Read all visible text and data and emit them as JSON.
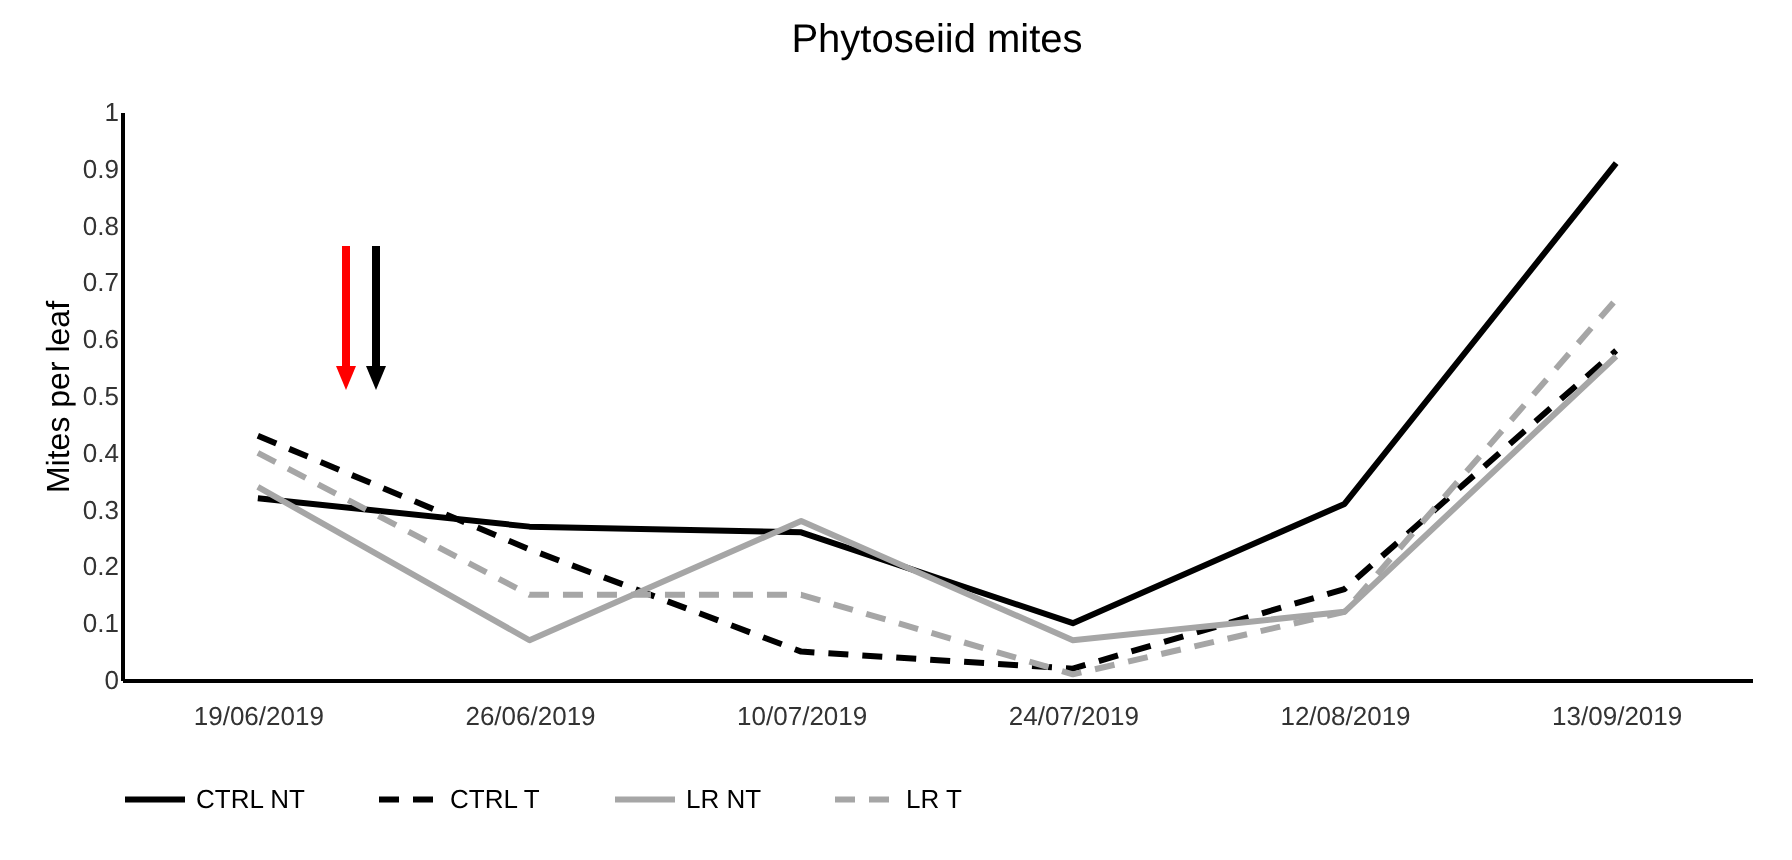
{
  "chart_data": {
    "type": "line",
    "title": "Phytoseiid mites",
    "ylabel": "Mites per leaf",
    "categories": [
      "19/06/2019",
      "26/06/2019",
      "10/07/2019",
      "24/07/2019",
      "12/08/2019",
      "13/09/2019"
    ],
    "series": [
      {
        "name": "CTRL NT",
        "color": "#000000",
        "line_style": "solid",
        "values": [
          0.32,
          0.27,
          0.26,
          0.1,
          0.31,
          0.91
        ]
      },
      {
        "name": "CTRL T",
        "color": "#000000",
        "line_style": "dashed",
        "values": [
          0.43,
          0.23,
          0.05,
          0.02,
          0.16,
          0.58
        ]
      },
      {
        "name": "LR NT",
        "color": "#a6a6a6",
        "line_style": "solid",
        "values": [
          0.34,
          0.07,
          0.28,
          0.07,
          0.12,
          0.57
        ]
      },
      {
        "name": "LR T",
        "color": "#a6a6a6",
        "line_style": "dashed",
        "values": [
          0.4,
          0.15,
          0.15,
          0.01,
          0.12,
          0.67
        ]
      }
    ],
    "ylim": [
      0,
      1
    ],
    "yticks": [
      0,
      0.1,
      0.2,
      0.3,
      0.4,
      0.5,
      0.6,
      0.7,
      0.8,
      0.9,
      1
    ],
    "grid": false,
    "legend": "bottom"
  }
}
